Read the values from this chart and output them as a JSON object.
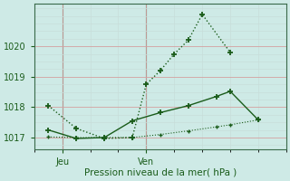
{
  "background_color": "#ceeae6",
  "grid_color_major": "#d4a0a0",
  "grid_color_minor": "#c8deda",
  "line_color": "#1a5c1a",
  "xlabel": "Pression niveau de la mer( hPa )",
  "ylim": [
    1016.6,
    1021.4
  ],
  "yticks": [
    1017,
    1018,
    1019,
    1020
  ],
  "x_jeu": 1,
  "x_ven": 4,
  "xlim": [
    0,
    9
  ],
  "series1_x": [
    0.5,
    1.5,
    2.5,
    3.5,
    4.0,
    4.5,
    5.0,
    5.5,
    6.0,
    7.0
  ],
  "series1_y": [
    1018.05,
    1017.3,
    1016.97,
    1017.0,
    1018.75,
    1019.2,
    1019.75,
    1020.2,
    1021.05,
    1019.8
  ],
  "series2_x": [
    0.5,
    1.5,
    2.5,
    3.5,
    4.5,
    5.5,
    6.5,
    7.0,
    8.0
  ],
  "series2_y": [
    1017.25,
    1016.97,
    1017.0,
    1017.55,
    1017.82,
    1018.05,
    1018.35,
    1018.52,
    1017.58
  ],
  "series3_x": [
    0.5,
    1.5,
    2.5,
    3.5,
    4.5,
    5.5,
    6.5,
    7.0,
    8.0
  ],
  "series3_y": [
    1017.02,
    1017.0,
    1017.0,
    1017.0,
    1017.1,
    1017.22,
    1017.35,
    1017.42,
    1017.58
  ]
}
